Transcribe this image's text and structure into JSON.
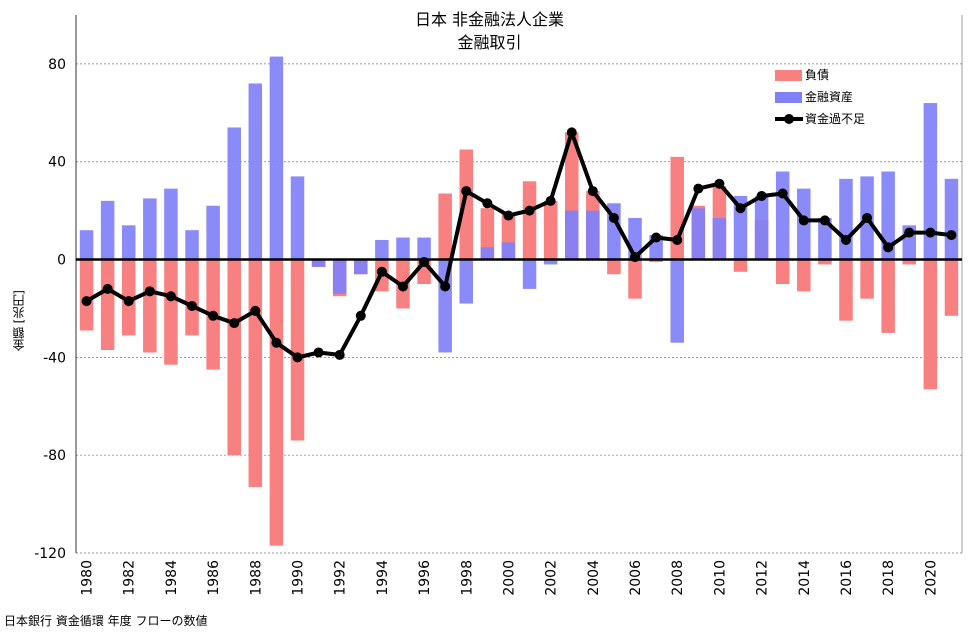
{
  "chart_data": {
    "type": "bar",
    "title": "日本 非金融法人企業",
    "subtitle": "金融取引",
    "ylabel": "金額 [兆円]",
    "ylim": [
      -120,
      100
    ],
    "yticks": [
      80,
      40,
      0,
      -40,
      -80,
      -120
    ],
    "x": [
      1980,
      1981,
      1982,
      1983,
      1984,
      1985,
      1986,
      1987,
      1988,
      1989,
      1990,
      1991,
      1992,
      1993,
      1994,
      1995,
      1996,
      1997,
      1998,
      1999,
      2000,
      2001,
      2002,
      2003,
      2004,
      2005,
      2006,
      2007,
      2008,
      2009,
      2010,
      2011,
      2012,
      2013,
      2014,
      2015,
      2016,
      2017,
      2018,
      2019,
      2020,
      2021
    ],
    "xtick_labels": [
      "1980",
      "1982",
      "1984",
      "1986",
      "1988",
      "1990",
      "1992",
      "1994",
      "1996",
      "1998",
      "2000",
      "2002",
      "2004",
      "2006",
      "2008",
      "2010",
      "2012",
      "2014",
      "2016",
      "2018",
      "2020"
    ],
    "grid": true,
    "legend_position": "top-right",
    "series": [
      {
        "name": "負債",
        "type": "bar",
        "color": "#f88080",
        "values": [
          -29,
          -37,
          -31,
          -38,
          -43,
          -31,
          -45,
          -80,
          -93,
          -117,
          -74,
          -3,
          -15,
          -6,
          -13,
          -20,
          -10,
          27,
          45,
          21,
          19,
          32,
          24,
          52,
          28,
          -6,
          -16,
          -1,
          42,
          22,
          30,
          -5,
          16,
          -10,
          -13,
          -2,
          -25,
          -16,
          -30,
          -2,
          -53,
          -23
        ]
      },
      {
        "name": "金融資産",
        "type": "bar",
        "color": "#8080f8",
        "values": [
          12,
          24,
          14,
          25,
          29,
          12,
          22,
          54,
          72,
          83,
          34,
          -3,
          -14,
          -6,
          8,
          9,
          9,
          -38,
          -18,
          5,
          7,
          -12,
          -2,
          20,
          20,
          23,
          17,
          10,
          -34,
          21,
          17,
          26,
          26,
          36,
          29,
          17,
          33,
          34,
          36,
          14,
          64,
          33
        ]
      },
      {
        "name": "資金過不足",
        "type": "line",
        "color": "#000000",
        "values": [
          -17,
          -12,
          -17,
          -13,
          -15,
          -19,
          -23,
          -26,
          -21,
          -34,
          -40,
          -38,
          -39,
          -23,
          -5,
          -11,
          -1,
          -11,
          28,
          23,
          18,
          20,
          24,
          52,
          28,
          17,
          1,
          9,
          8,
          29,
          31,
          21,
          26,
          27,
          16,
          16,
          8,
          17,
          5,
          11,
          11,
          10
        ]
      }
    ],
    "source": "日本銀行 資金循環 年度 フローの数値"
  }
}
